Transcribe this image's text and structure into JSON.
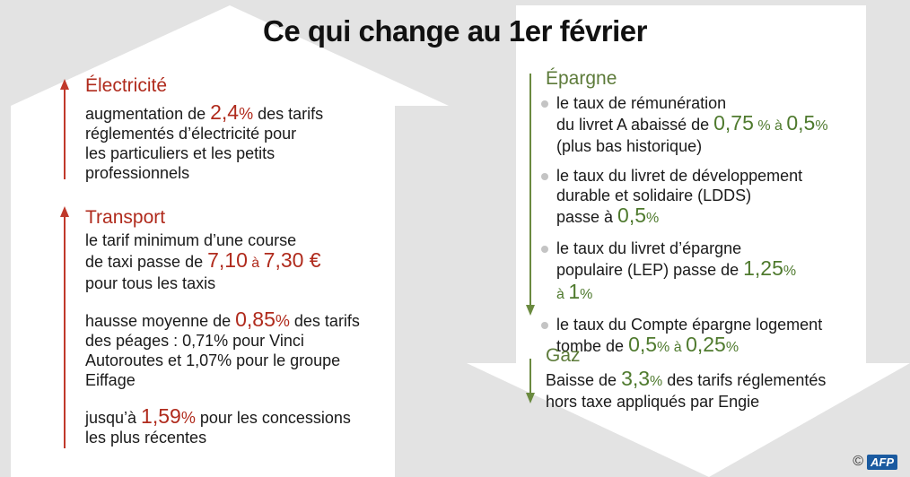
{
  "title": "Ce qui change au 1er février",
  "colors": {
    "increase": "#b02b1d",
    "decrease": "#4f7a2e",
    "arrow_up": "#c0392b",
    "arrow_down": "#6a8a3f"
  },
  "left": {
    "electricite": {
      "heading": "Électricité",
      "p1": "augmentation de ",
      "v1": "2,4",
      "v1_unit": "%",
      "p2": " des tarifs",
      "line2": "réglementés d’électricité pour",
      "line3": "les particuliers et les petits",
      "line4": "professionnels"
    },
    "transport": {
      "heading": "Transport",
      "taxi": {
        "line1": "le tarif minimum d’une course",
        "p1": "de taxi passe de ",
        "v_from": "7,10",
        "a": " à ",
        "v_to": "7,30 €",
        "line3": "pour tous les taxis"
      },
      "peages": {
        "p1": "hausse moyenne de ",
        "v1": "0,85",
        "v1_unit": "%",
        "p2": " des tarifs",
        "line2": "des péages : 0,71% pour Vinci",
        "line3": "Autoroutes et 1,07% pour le groupe",
        "line4": "Eiffage"
      },
      "concessions": {
        "p1": "jusqu’à ",
        "v1": "1,59",
        "v1_unit": "%",
        "p2": " pour les concessions",
        "line2": "les plus récentes"
      }
    }
  },
  "right": {
    "epargne": {
      "heading": "Épargne",
      "livret_a": {
        "line1": "le taux de rémunération",
        "p1": "du livret A abaissé de ",
        "v_from": "0,75",
        "unit_from": " %",
        "a": " à ",
        "v_to": "0,5",
        "unit_to": "%",
        "line3": "(plus bas historique)"
      },
      "ldds": {
        "line1": "le taux du livret de développement",
        "line2": "durable et solidaire (LDDS)",
        "p1": "passe à ",
        "v1": "0,5",
        "v1_unit": "%"
      },
      "lep": {
        "line1": "le taux du livret d’épargne",
        "p1": "populaire (LEP) passe de ",
        "v_from": "1,25",
        "unit_from": "%",
        "a": "à ",
        "v_to": "1",
        "unit_to": "%"
      },
      "cel": {
        "line1": "le taux du Compte épargne logement",
        "p1": "tombe de ",
        "v_from": "0,5",
        "unit_from": "%",
        "a": " à ",
        "v_to": "0,25",
        "unit_to": "%"
      }
    },
    "gaz": {
      "heading": "Gaz",
      "p1": "Baisse de ",
      "v1": "3,3",
      "v1_unit": "%",
      "p2": " des tarifs réglementés",
      "line2": "hors taxe appliqués par Engie"
    }
  },
  "credit": {
    "copyright": "©",
    "logo": "AFP"
  }
}
